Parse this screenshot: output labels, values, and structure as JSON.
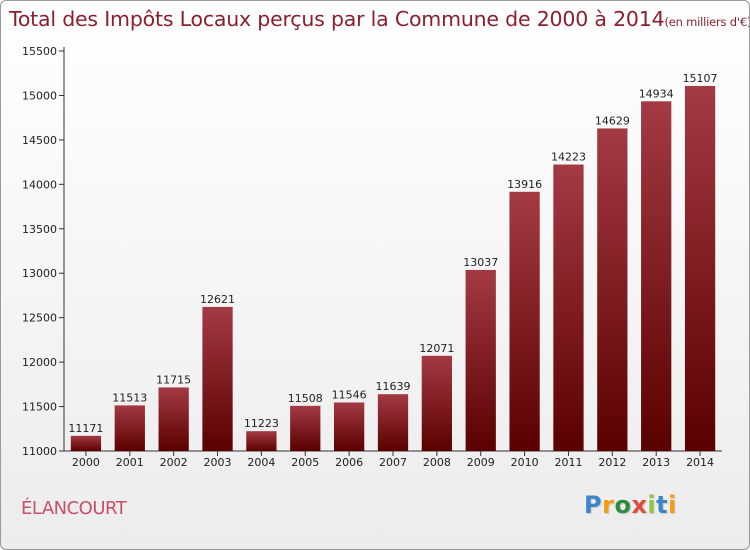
{
  "chart_data": {
    "type": "bar",
    "title": "Total des Impôts Locaux perçus par la Commune de 2000 à 2014",
    "subtitle": "(en milliers d'€)",
    "categories": [
      "2000",
      "2001",
      "2002",
      "2003",
      "2004",
      "2005",
      "2006",
      "2007",
      "2008",
      "2009",
      "2010",
      "2011",
      "2012",
      "2013",
      "2014"
    ],
    "values": [
      11171,
      11513,
      11715,
      12621,
      11223,
      11508,
      11546,
      11639,
      12071,
      13037,
      13916,
      14223,
      14629,
      14934,
      15107
    ],
    "ylim": [
      11000,
      15500
    ],
    "yticks": [
      11000,
      11500,
      12000,
      12500,
      13000,
      13500,
      14000,
      14500,
      15000,
      15500
    ],
    "xlabel": "",
    "ylabel": "",
    "grid": false,
    "bar_color_top": "#a33a44",
    "bar_color_bottom": "#5a0000"
  },
  "commune": "ÉLANCOURT",
  "logo": {
    "letters": [
      "P",
      "r",
      "o",
      "x",
      "i",
      "t",
      "i"
    ],
    "colors": [
      "#3a87c8",
      "#f39c12",
      "#2e8b3a",
      "#e04a3f",
      "#8fc641",
      "#3a87c8",
      "#f39c12"
    ]
  }
}
